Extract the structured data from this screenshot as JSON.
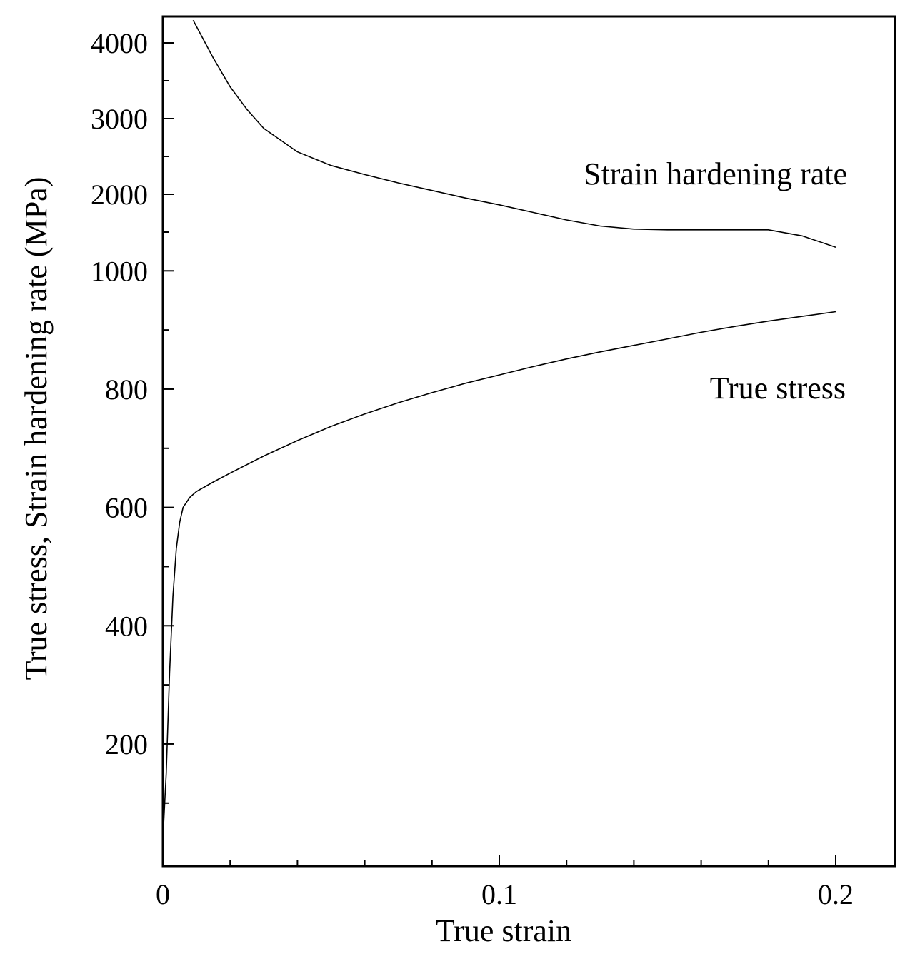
{
  "chart_data": {
    "type": "line",
    "xlabel": "True strain",
    "ylabel": "True stress,  Strain hardening  rate (MPa)",
    "xlim": [
      0,
      0.22
    ],
    "x_ticks": [
      {
        "value": 0,
        "label": "0"
      },
      {
        "value": 0.1,
        "label": "0.1"
      },
      {
        "value": 0.2,
        "label": "0.2"
      }
    ],
    "y_axis_note": "broken y-axis: linear 0-900 MPa in lower part, linear 1000-4300 MPa in upper part",
    "y_ticks": [
      {
        "value": 200,
        "label": "200"
      },
      {
        "value": 400,
        "label": "400"
      },
      {
        "value": 600,
        "label": "600"
      },
      {
        "value": 800,
        "label": "800"
      },
      {
        "value": 1000,
        "label": "1000"
      },
      {
        "value": 2000,
        "label": "2000"
      },
      {
        "value": 3000,
        "label": "3000"
      },
      {
        "value": 4000,
        "label": "4000"
      }
    ],
    "series": [
      {
        "name": "Strain hardening rate",
        "label": "Strain hardening rate",
        "x": [
          0.009,
          0.015,
          0.02,
          0.025,
          0.03,
          0.04,
          0.05,
          0.06,
          0.07,
          0.08,
          0.09,
          0.1,
          0.11,
          0.12,
          0.13,
          0.14,
          0.15,
          0.16,
          0.17,
          0.18,
          0.19,
          0.2
        ],
        "values": [
          4300,
          3800,
          3420,
          3120,
          2870,
          2560,
          2380,
          2260,
          2150,
          2050,
          1950,
          1860,
          1760,
          1660,
          1580,
          1540,
          1530,
          1530,
          1530,
          1530,
          1450,
          1300
        ]
      },
      {
        "name": "True stress",
        "label": "True stress",
        "x": [
          0,
          0.001,
          0.002,
          0.003,
          0.004,
          0.005,
          0.006,
          0.008,
          0.01,
          0.015,
          0.02,
          0.03,
          0.04,
          0.05,
          0.06,
          0.07,
          0.08,
          0.09,
          0.1,
          0.11,
          0.12,
          0.13,
          0.14,
          0.15,
          0.16,
          0.17,
          0.18,
          0.19,
          0.2
        ],
        "values": [
          40,
          150,
          320,
          450,
          530,
          575,
          600,
          617,
          627,
          643,
          658,
          687,
          713,
          737,
          758,
          777,
          794,
          810,
          824,
          838,
          851,
          863,
          874,
          885,
          896,
          906,
          915,
          923,
          931
        ]
      }
    ]
  }
}
